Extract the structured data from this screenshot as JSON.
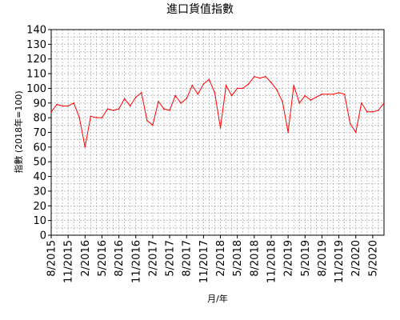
{
  "chart_data": {
    "type": "line",
    "title": "進口貨值指數",
    "xlabel": "月/年",
    "ylabel": "指數 (2018年=100)",
    "ylim": [
      0,
      140
    ],
    "yticks": [
      0,
      10,
      20,
      30,
      40,
      50,
      60,
      70,
      80,
      90,
      100,
      110,
      120,
      130,
      140
    ],
    "xtick_labels": [
      "8/2015",
      "11/2015",
      "2/2016",
      "5/2016",
      "8/2016",
      "11/2016",
      "2/2017",
      "5/2017",
      "8/2017",
      "11/2017",
      "2/2018",
      "5/2018",
      "8/2018",
      "11/2018",
      "2/2019",
      "5/2019",
      "8/2019",
      "11/2019",
      "2/2020",
      "5/2020"
    ],
    "grid": true,
    "line_color": "#ff0000",
    "x": [
      "8/2015",
      "9/2015",
      "10/2015",
      "11/2015",
      "12/2015",
      "1/2016",
      "2/2016",
      "3/2016",
      "4/2016",
      "5/2016",
      "6/2016",
      "7/2016",
      "8/2016",
      "9/2016",
      "10/2016",
      "11/2016",
      "12/2016",
      "1/2017",
      "2/2017",
      "3/2017",
      "4/2017",
      "5/2017",
      "6/2017",
      "7/2017",
      "8/2017",
      "9/2017",
      "10/2017",
      "11/2017",
      "12/2017",
      "1/2018",
      "2/2018",
      "3/2018",
      "4/2018",
      "5/2018",
      "6/2018",
      "7/2018",
      "8/2018",
      "9/2018",
      "10/2018",
      "11/2018",
      "12/2018",
      "1/2019",
      "2/2019",
      "3/2019",
      "4/2019",
      "5/2019",
      "6/2019",
      "7/2019",
      "8/2019",
      "9/2019",
      "10/2019",
      "11/2019",
      "12/2019",
      "1/2020",
      "2/2020",
      "3/2020",
      "4/2020",
      "5/2020",
      "6/2020",
      "7/2020"
    ],
    "values": [
      84,
      89,
      88,
      88,
      90,
      80,
      60,
      81,
      80,
      80,
      86,
      85,
      86,
      93,
      88,
      94,
      97,
      78,
      75,
      91,
      86,
      85,
      95,
      90,
      93,
      102,
      96,
      103,
      106,
      97,
      73,
      102,
      95,
      100,
      100,
      103,
      108,
      107,
      108,
      104,
      99,
      91,
      70,
      102,
      90,
      95,
      92,
      94,
      96,
      96,
      96,
      97,
      96,
      76,
      70,
      90,
      84,
      84,
      85,
      90
    ]
  }
}
